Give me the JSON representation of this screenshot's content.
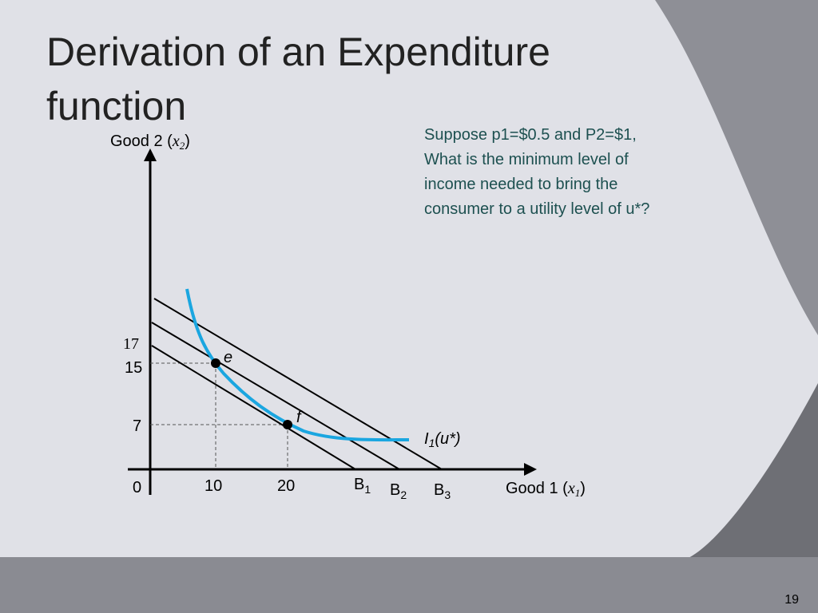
{
  "title": [
    "Derivation of an Expenditure",
    "function"
  ],
  "question": [
    "Suppose p1=$0.5 and P2=$1,",
    "What is the minimum level of",
    "income needed to bring the",
    "consumer to a utility level of u*?"
  ],
  "diagram": {
    "y_axis": {
      "label": "Good 2 (",
      "var": "x",
      "sub": "2",
      "close": ")"
    },
    "x_axis": {
      "label": "Good 1 (",
      "var": "x",
      "sub": "1",
      "close": ")"
    },
    "y_ticks": [
      "17",
      "15",
      "7"
    ],
    "origin": "0",
    "x_ticks": [
      "10",
      "20"
    ],
    "budget_lines": [
      {
        "label": "B",
        "sub": "1"
      },
      {
        "label": "B",
        "sub": "2"
      },
      {
        "label": "B",
        "sub": "3"
      }
    ],
    "points": [
      "e",
      "f"
    ],
    "curve": {
      "label": "I",
      "sub": "1",
      "rest": "(u*)"
    }
  },
  "page_number": "19"
}
